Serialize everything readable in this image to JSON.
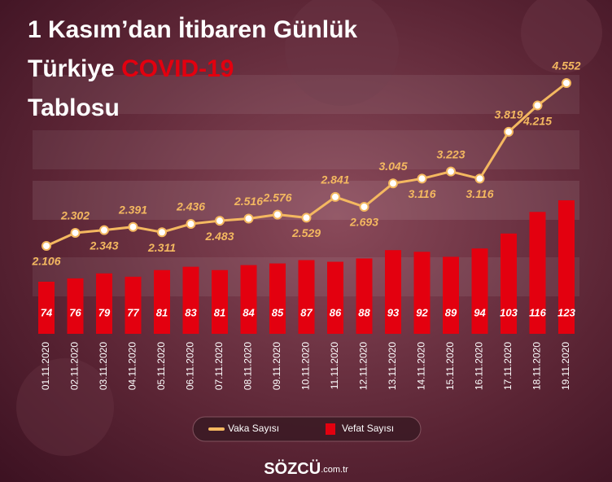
{
  "chart_data": {
    "type": "bar-line",
    "title_lines": [
      "1 Kasım’dan İtibaren Günlük",
      "Türkiye"
    ],
    "title_highlight": "COVID-19",
    "title_end": "Tablosu",
    "categories": [
      "01.11.2020",
      "02.11.2020",
      "03.11.2020",
      "04.11.2020",
      "05.11.2020",
      "06.11.2020",
      "07.11.2020",
      "08.11.2020",
      "09.11.2020",
      "10.11.2020",
      "11.11.2020",
      "12.11.2020",
      "13.11.2020",
      "14.11.2020",
      "15.11.2020",
      "16.11.2020",
      "17.11.2020",
      "18.11.2020",
      "19.11.2020"
    ],
    "series": [
      {
        "name": "Vaka Sayısı",
        "color": "#f4b860",
        "kind": "line",
        "values": [
          2106,
          2302,
          2343,
          2391,
          2311,
          2436,
          2483,
          2516,
          2576,
          2529,
          2841,
          2693,
          3045,
          3116,
          3223,
          3116,
          3819,
          4215,
          4552
        ],
        "value_labels": [
          "2.106",
          "2.302",
          "2.343",
          "2.391",
          "2.311",
          "2.436",
          "2.483",
          "2.516",
          "2.576",
          "2.529",
          "2.841",
          "2.693",
          "3.045",
          "3.116",
          "3.223",
          "3.116",
          "3.819",
          "4.215",
          "4.552"
        ]
      },
      {
        "name": "Vefat Sayısı",
        "color": "#e3000f",
        "kind": "bar",
        "values": [
          74,
          76,
          79,
          77,
          81,
          83,
          81,
          84,
          85,
          87,
          86,
          88,
          93,
          92,
          89,
          94,
          103,
          116,
          123
        ]
      }
    ],
    "brand": "SÖZCÜ",
    "brand_suffix": ".com.tr"
  }
}
